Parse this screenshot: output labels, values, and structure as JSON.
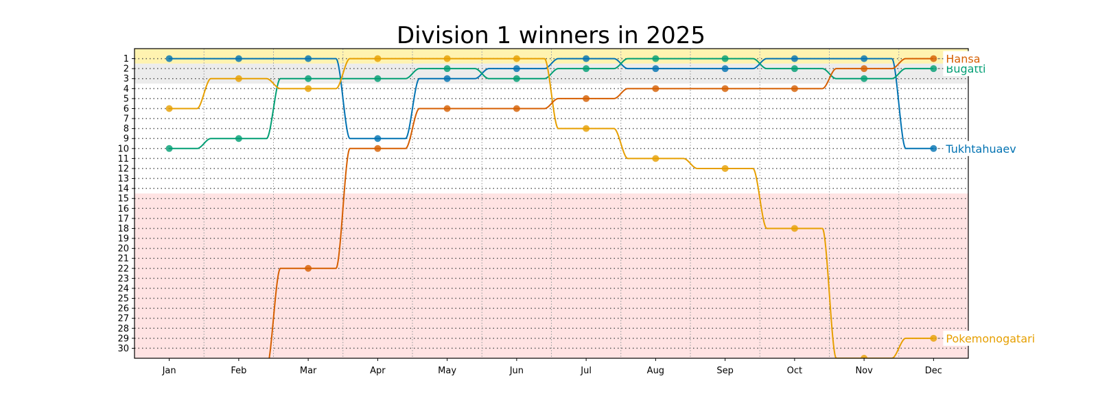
{
  "chart_data": {
    "type": "line",
    "title": "Division 1 winners in 2025",
    "xlabel": "",
    "ylabel": "",
    "categories": [
      "Jan",
      "Feb",
      "Mar",
      "Apr",
      "May",
      "Jun",
      "Jul",
      "Aug",
      "Sep",
      "Oct",
      "Nov",
      "Dec"
    ],
    "yticks": [
      1,
      2,
      3,
      4,
      5,
      6,
      7,
      8,
      9,
      10,
      11,
      12,
      13,
      14,
      15,
      16,
      17,
      18,
      19,
      20,
      21,
      22,
      23,
      24,
      25,
      26,
      27,
      28,
      29,
      30
    ],
    "ylim": [
      31,
      0
    ],
    "y_inverted": true,
    "grid": "horizontal dotted at each rank, vertical dotted between months",
    "bands": [
      {
        "from": 0,
        "to": 1.5,
        "color": "#fff3b0"
      },
      {
        "from": 1.5,
        "to": 3.5,
        "color": "#ececec"
      },
      {
        "from": 14.5,
        "to": 31,
        "color": "#ffe3e3"
      }
    ],
    "legend": "end-of-line labels right",
    "series": [
      {
        "name": "Tukhtahuaev",
        "color": "#0072b2",
        "values": [
          1,
          1,
          1,
          9,
          3,
          2,
          1,
          2,
          2,
          1,
          1,
          10
        ]
      },
      {
        "name": "Bugatti",
        "color": "#009e73",
        "values": [
          10,
          9,
          3,
          3,
          2,
          3,
          2,
          1,
          1,
          2,
          3,
          2
        ]
      },
      {
        "name": "Pokemonogatari",
        "color": "#e69f00",
        "values": [
          6,
          3,
          4,
          1,
          1,
          1,
          8,
          11,
          12,
          18,
          31,
          29
        ]
      },
      {
        "name": "Hansa",
        "color": "#d55e00",
        "values": [
          null,
          null,
          22,
          10,
          6,
          6,
          5,
          4,
          4,
          4,
          2,
          1
        ]
      }
    ]
  }
}
